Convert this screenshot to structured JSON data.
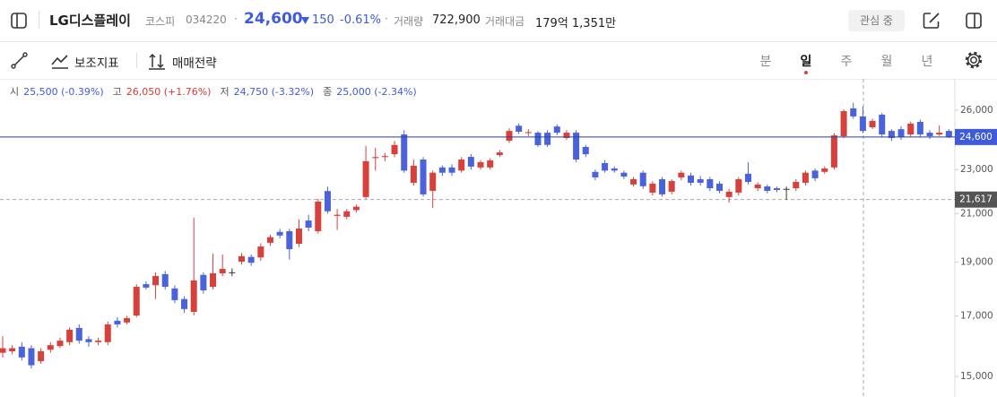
{
  "header": {
    "name": "LG디스플레이",
    "market": "코스피",
    "code": "034220",
    "price": "24,600",
    "change": "150",
    "change_pct": "-0.61%",
    "volume_label": "거래량",
    "volume": "722,900",
    "amount_label": "거래대금",
    "amount": "179억 1,351만",
    "watch_button": "관심 중"
  },
  "toolbar": {
    "indicators": "보조지표",
    "strategy": "매매전략",
    "periods": [
      "분",
      "일",
      "주",
      "월",
      "년"
    ]
  },
  "ohlc_info": [
    {
      "label": "시",
      "value": "25,500 (-0.39%)",
      "color": "#3f5bd8"
    },
    {
      "label": "고",
      "value": "26,050 (+1.76%)",
      "color": "#d43b36"
    },
    {
      "label": "저",
      "value": "24,750 (-3.32%)",
      "color": "#3f5bd8"
    },
    {
      "label": "종",
      "value": "25,000 (-2.34%)",
      "color": "#3f5bd8"
    }
  ],
  "chart_data": {
    "type": "candlestick",
    "log_scale": true,
    "up_color": "#d8403b",
    "down_color": "#4a62dc",
    "flat_color": "#333333",
    "ylim": [
      14375,
      27740
    ],
    "yticks": [
      {
        "value": 26000,
        "label": "26,000"
      },
      {
        "value": 23000,
        "label": "23,000"
      },
      {
        "value": 21000,
        "label": "21,000"
      },
      {
        "value": 19000,
        "label": "19,000"
      },
      {
        "value": 17000,
        "label": "17,000"
      },
      {
        "value": 15000,
        "label": "15,000"
      }
    ],
    "price_line": {
      "value": 24600,
      "label": "24,600",
      "color": "#3f5bd8"
    },
    "crosshair": {
      "value": 21617,
      "label": "21,617"
    },
    "open": [
      15750,
      15800,
      15950,
      15900,
      15480,
      15850,
      15970,
      16100,
      16580,
      16200,
      16100,
      16100,
      16830,
      16770,
      17010,
      18150,
      18110,
      18530,
      17990,
      17600,
      17140,
      18500,
      18050,
      18560,
      18600,
      19010,
      19200,
      19180,
      19770,
      20220,
      20250,
      19730,
      20700,
      20250,
      22000,
      20900,
      20860,
      21150,
      21730,
      23550,
      23600,
      23740,
      24730,
      22380,
      23480,
      22010,
      23100,
      23100,
      22950,
      23610,
      23100,
      23100,
      23700,
      24410,
      25180,
      24800,
      24820,
      24820,
      25140,
      24550,
      24820,
      24100,
      22890,
      23310,
      23050,
      22850,
      22300,
      22850,
      21930,
      22545,
      21970,
      22630,
      22720,
      22545,
      22545,
      22340,
      21730,
      21930,
      22800,
      22130,
      22210,
      22130,
      22100,
      22130,
      22380,
      22950,
      22890,
      23100,
      24640,
      26100,
      25670,
      25100,
      25760,
      24910,
      25000,
      24730,
      25380,
      24820,
      24730,
      24910
    ],
    "high": [
      16300,
      16000,
      16100,
      16000,
      15900,
      16100,
      16250,
      16600,
      16700,
      16300,
      16250,
      16800,
      16950,
      17000,
      18150,
      18250,
      18600,
      18650,
      18100,
      17700,
      20820,
      18600,
      19330,
      19300,
      18750,
      19350,
      19300,
      19750,
      20100,
      20350,
      20350,
      20750,
      20950,
      21650,
      22200,
      21200,
      21200,
      21400,
      24150,
      24050,
      23800,
      24400,
      24950,
      23480,
      23600,
      22950,
      23200,
      23250,
      23600,
      23750,
      23450,
      23550,
      23950,
      25050,
      25300,
      25000,
      24900,
      24950,
      25250,
      24950,
      24950,
      24200,
      23000,
      23450,
      23150,
      22950,
      22650,
      22950,
      22450,
      22650,
      22550,
      22950,
      22850,
      22700,
      22650,
      22450,
      22100,
      22650,
      23350,
      22400,
      22300,
      22200,
      22200,
      22550,
      22950,
      23050,
      23150,
      24800,
      26050,
      26400,
      26200,
      25550,
      25850,
      25000,
      25150,
      25400,
      25500,
      24950,
      25200,
      25000
    ],
    "low": [
      15600,
      15700,
      15500,
      15250,
      15400,
      15750,
      15900,
      16000,
      16050,
      15950,
      16000,
      16000,
      16600,
      16700,
      16950,
      17950,
      17600,
      17950,
      17450,
      17100,
      17010,
      17800,
      17950,
      18450,
      18450,
      18900,
      18850,
      19050,
      19650,
      19950,
      19100,
      19600,
      20250,
      20150,
      21000,
      20300,
      20750,
      21050,
      21650,
      22950,
      23400,
      23600,
      22850,
      22250,
      21750,
      21250,
      22700,
      22700,
      22850,
      23000,
      23000,
      23000,
      23600,
      24300,
      24750,
      24650,
      24100,
      24100,
      24700,
      24450,
      23350,
      23600,
      22500,
      22850,
      22850,
      22550,
      22200,
      22100,
      21800,
      21750,
      21850,
      22500,
      22250,
      22250,
      22000,
      21900,
      21480,
      21800,
      22300,
      22000,
      21900,
      21950,
      21600,
      22000,
      22250,
      22450,
      22800,
      23000,
      24550,
      25550,
      24800,
      25000,
      24600,
      24400,
      24450,
      24600,
      24600,
      24500,
      24650,
      24550
    ],
    "close": [
      15900,
      15900,
      15600,
      15350,
      15800,
      16000,
      16150,
      16520,
      16150,
      16100,
      16150,
      16700,
      16700,
      16920,
      18050,
      18020,
      18460,
      18050,
      17560,
      17240,
      18290,
      17920,
      18560,
      18730,
      18600,
      19230,
      18970,
      19620,
      20000,
      20070,
      19510,
      20360,
      20400,
      21525,
      21100,
      20950,
      21100,
      21300,
      23400,
      23600,
      23650,
      24200,
      22950,
      23180,
      21850,
      22850,
      22850,
      22850,
      23480,
      23140,
      23350,
      23440,
      23830,
      24910,
      24870,
      24850,
      24190,
      24200,
      24820,
      24820,
      23480,
      23740,
      22630,
      22950,
      22950,
      22670,
      22545,
      22220,
      22340,
      21850,
      22460,
      22850,
      22380,
      22380,
      22130,
      22010,
      21970,
      22545,
      22420,
      22300,
      22010,
      22050,
      22100,
      22420,
      22850,
      22590,
      23050,
      24680,
      25950,
      25670,
      24910,
      25430,
      24730,
      24550,
      24590,
      25290,
      24730,
      24640,
      24820,
      24600
    ]
  }
}
